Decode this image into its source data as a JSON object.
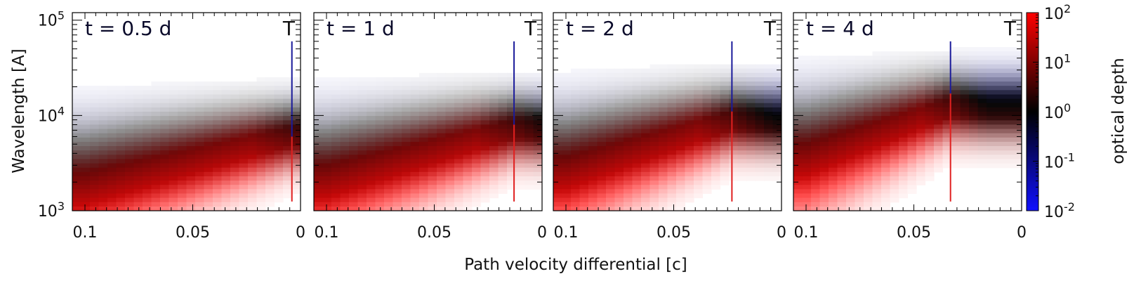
{
  "chart_data": {
    "type": "heatmap",
    "xlabel": "Path velocity differential [c]",
    "ylabel": "Wavelength [A]",
    "colorbar_label": "optical depth",
    "xlim": [
      0.1,
      0
    ],
    "ylim": [
      1000,
      120000
    ],
    "x_ticks": [
      0.1,
      0.05,
      0
    ],
    "x_tick_labels": [
      "0.1",
      "0.05",
      "0"
    ],
    "y_ticks": [
      1000,
      10000,
      100000
    ],
    "y_tick_labels": [
      {
        "base": "10",
        "exp": "3"
      },
      {
        "base": "10",
        "exp": "4"
      },
      {
        "base": "10",
        "exp": "5"
      }
    ],
    "colorbar_ticks": [
      0.01,
      0.1,
      1,
      10,
      100
    ],
    "colorbar_tick_labels": [
      {
        "base": "10",
        "exp": "-2"
      },
      {
        "base": "10",
        "exp": "-1"
      },
      {
        "base": "10",
        "exp": "0"
      },
      {
        "base": "10",
        "exp": "1"
      },
      {
        "base": "10",
        "exp": "2"
      }
    ],
    "colors": {
      "low": "#1010ff",
      "mid": "#000000",
      "high": "#ff0000",
      "marker_upper": "#1a1a9a",
      "marker_lower": "#e02020"
    },
    "panels": [
      {
        "title": "t = 0.5 d",
        "marker": "T",
        "marker_velocity": 0.004,
        "photosphere_wavelength": 6000
      },
      {
        "title": "t = 1 d",
        "marker": "T",
        "marker_velocity": 0.013,
        "photosphere_wavelength": 8000
      },
      {
        "title": "t = 2 d",
        "marker": "T",
        "marker_velocity": 0.023,
        "photosphere_wavelength": 11000
      },
      {
        "title": "t = 4 d",
        "marker": "T",
        "marker_velocity": 0.033,
        "photosphere_wavelength": 17000
      }
    ]
  }
}
